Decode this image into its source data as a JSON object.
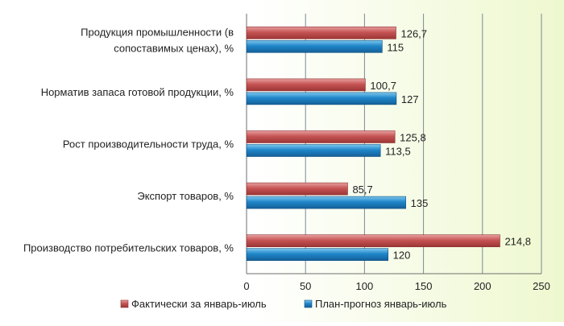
{
  "chart_data": {
    "type": "bar",
    "orientation": "horizontal",
    "categories": [
      [
        "Продукция промышленности (в",
        "сопоставимых ценах), %"
      ],
      [
        "Норматив запаса готовой продукции, %"
      ],
      [
        "Рост производительности труда, %"
      ],
      [
        "Экспорт товаров, %"
      ],
      [
        "Производство потребительских товаров, %"
      ]
    ],
    "series": [
      {
        "name": "Фактически за январь-июль",
        "color": "#c0504d",
        "values": [
          126.7,
          100.7,
          125.8,
          85.7,
          214.8
        ],
        "labels": [
          "126,7",
          "100,7",
          "125,8",
          "85,7",
          "214,8"
        ]
      },
      {
        "name": "План-прогноз январь-июль",
        "color": "#1f7fc4",
        "values": [
          115,
          127,
          113.5,
          135,
          120
        ],
        "labels": [
          "115",
          "127",
          "113,5",
          "135",
          "120"
        ]
      }
    ],
    "xlim": [
      0,
      250
    ],
    "xticks": [
      0,
      50,
      100,
      150,
      200,
      250
    ],
    "grid": "vertical",
    "legend_position": "bottom"
  }
}
